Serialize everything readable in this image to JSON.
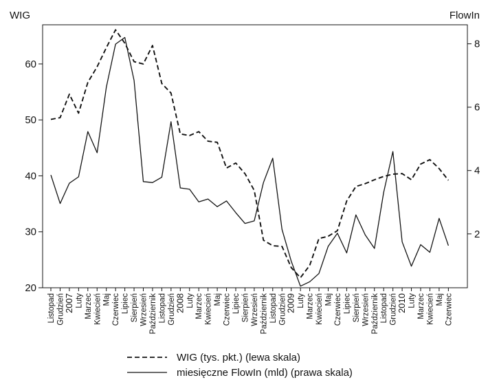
{
  "chart_data": {
    "type": "line",
    "left_axis_title": "WIG",
    "right_axis_title": "FlowIn",
    "left_ylim": [
      20,
      67
    ],
    "left_ticks": [
      20,
      30,
      40,
      50,
      60
    ],
    "right_ylim": [
      0.3,
      8.6
    ],
    "right_ticks": [
      2,
      4,
      6,
      8
    ],
    "x": [
      "Listopad",
      "Grudzień",
      "2007",
      "Luty",
      "Marzec",
      "Kwiecień",
      "Maj",
      "Czerwiec",
      "Lipiec",
      "Sierpień",
      "Wrzesień",
      "Październik",
      "Listopad",
      "Grudzień",
      "2008",
      "Luty",
      "Marzec",
      "Kwiecień",
      "Maj",
      "Czerwiec",
      "Lipiec",
      "Sierpień",
      "Wrzesień",
      "Październik",
      "Listopad",
      "Grudzień",
      "2009",
      "Luty",
      "Marzec",
      "Kwiecień",
      "Maj",
      "Czerwiec",
      "Lipiec",
      "Sierpień",
      "Wrzesień",
      "Październik",
      "Listopad",
      "Grudzień",
      "2010",
      "Luty",
      "Marzec",
      "Kwiecień",
      "Maj",
      "Czerwiec"
    ],
    "series": [
      {
        "name": "WIG (tys. pkt.) (lewa skala)",
        "axis": "left",
        "style": "dashed",
        "values": [
          50.1,
          50.4,
          54.6,
          51.2,
          56.7,
          59.5,
          62.9,
          66.1,
          63.7,
          60.4,
          60.0,
          63.3,
          56.5,
          54.8,
          47.5,
          47.2,
          47.9,
          46.2,
          46.0,
          41.4,
          42.3,
          40.4,
          37.4,
          28.5,
          27.5,
          27.4,
          23.6,
          21.8,
          24.0,
          28.8,
          29.2,
          30.2,
          35.5,
          38.1,
          38.6,
          39.3,
          39.9,
          40.3,
          40.4,
          39.3,
          42.1,
          42.9,
          41.3,
          39.2
        ]
      },
      {
        "name": "miesięczne FlowIn (mld) (prawa skala)",
        "axis": "right",
        "style": "solid",
        "values": [
          3.86,
          2.96,
          3.6,
          3.8,
          5.23,
          4.56,
          6.63,
          7.99,
          8.2,
          6.84,
          3.65,
          3.62,
          3.79,
          5.54,
          3.45,
          3.41,
          3.01,
          3.1,
          2.86,
          3.04,
          2.67,
          2.33,
          2.41,
          3.62,
          4.39,
          2.14,
          1.14,
          0.35,
          0.49,
          0.75,
          1.61,
          2.02,
          1.4,
          2.6,
          1.97,
          1.54,
          3.31,
          4.6,
          1.75,
          0.98,
          1.66,
          1.42,
          2.49,
          1.63
        ]
      }
    ],
    "grid": false,
    "legend_position": "bottom"
  }
}
